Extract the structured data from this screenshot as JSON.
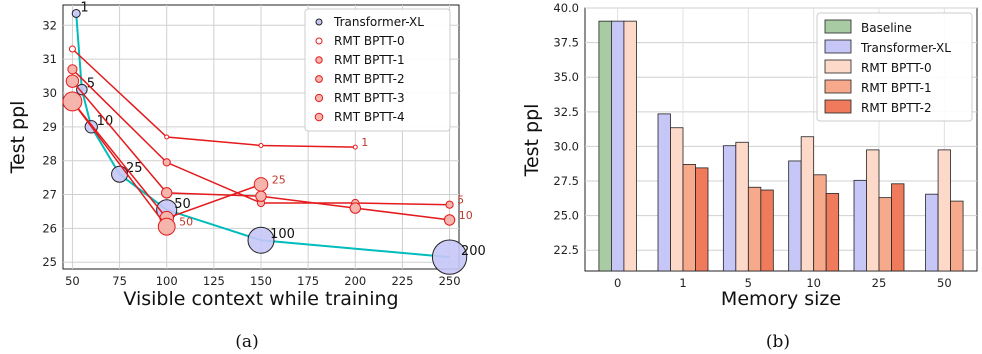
{
  "captions": [
    "(a)",
    "(b)"
  ],
  "chart_data": [
    {
      "type": "line",
      "title": "",
      "xlabel": "Visible context while training",
      "ylabel": "Test ppl",
      "xlim": [
        45,
        255
      ],
      "ylim": [
        24.8,
        32.6
      ],
      "xticks": [
        50,
        75,
        100,
        125,
        150,
        175,
        200,
        225,
        250
      ],
      "yticks": [
        25,
        26,
        27,
        28,
        29,
        30,
        31,
        32
      ],
      "grid": true,
      "legend_position": "top-right",
      "series": [
        {
          "name": "Transformer-XL",
          "color": "#00bcbc",
          "points": [
            {
              "x": 52,
              "y": 32.35,
              "label": "1"
            },
            {
              "x": 55,
              "y": 30.1,
              "label": "5"
            },
            {
              "x": 60,
              "y": 29.0,
              "label": "10"
            },
            {
              "x": 75,
              "y": 27.6,
              "label": "25"
            },
            {
              "x": 100,
              "y": 26.55,
              "label": "50"
            },
            {
              "x": 150,
              "y": 25.65,
              "label": "100"
            },
            {
              "x": 250,
              "y": 25.15,
              "label": "200"
            }
          ]
        },
        {
          "name": "RMT BPTT-0",
          "color": "#e41a1c",
          "x": [
            50,
            100,
            150,
            200
          ],
          "y": [
            31.3,
            28.7,
            28.45,
            28.4
          ],
          "end_label": "1"
        },
        {
          "name": "RMT BPTT-1",
          "color": "#e41a1c",
          "x": [
            50,
            100,
            150,
            200,
            250
          ],
          "y": [
            30.7,
            27.95,
            26.75,
            26.75,
            26.7
          ],
          "end_label": "5"
        },
        {
          "name": "RMT BPTT-2",
          "color": "#e41a1c",
          "x": [
            50,
            100,
            150,
            200,
            250
          ],
          "y": [
            30.35,
            27.05,
            26.95,
            26.6,
            26.25
          ],
          "end_label": "10"
        },
        {
          "name": "RMT BPTT-3",
          "color": "#e41a1c",
          "x": [
            50,
            100,
            150
          ],
          "y": [
            29.75,
            26.3,
            27.3
          ],
          "end_label": "25"
        },
        {
          "name": "RMT BPTT-4",
          "color": "#e41a1c",
          "x": [
            50,
            100
          ],
          "y": [
            29.75,
            26.05
          ],
          "end_label": "50"
        }
      ]
    },
    {
      "type": "bar",
      "title": "",
      "xlabel": "Memory size",
      "ylabel": "Test ppl",
      "ylim": [
        21,
        40
      ],
      "yticks": [
        22.5,
        25.0,
        27.5,
        30.0,
        32.5,
        35.0,
        37.5,
        40.0
      ],
      "categories": [
        "0",
        "1",
        "5",
        "10",
        "25",
        "50"
      ],
      "grid": true,
      "legend_position": "top-right",
      "series": [
        {
          "name": "Baseline",
          "color": "#a9cba4",
          "values": [
            39.05,
            null,
            null,
            null,
            null,
            null
          ]
        },
        {
          "name": "Transformer-XL",
          "color": "#c6c6f7",
          "values": [
            39.05,
            32.35,
            30.05,
            28.95,
            27.55,
            26.55
          ]
        },
        {
          "name": "RMT BPTT-0",
          "color": "#fcd9c9",
          "values": [
            39.05,
            31.35,
            30.3,
            30.7,
            29.75,
            29.75
          ]
        },
        {
          "name": "RMT BPTT-1",
          "color": "#f7a98c",
          "values": [
            null,
            28.7,
            27.05,
            27.95,
            26.3,
            26.05
          ]
        },
        {
          "name": "RMT BPTT-2",
          "color": "#f07a5c",
          "values": [
            null,
            28.45,
            26.85,
            26.6,
            27.3,
            null
          ]
        }
      ]
    }
  ]
}
